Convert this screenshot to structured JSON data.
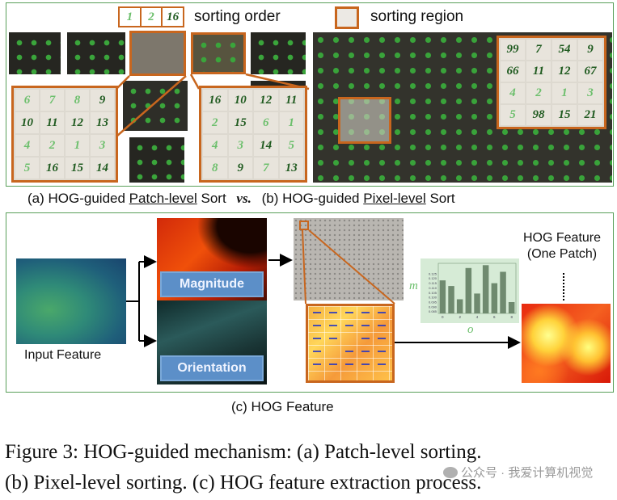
{
  "legend": {
    "order_numbers": [
      "1",
      "2",
      "16"
    ],
    "order_label": "sorting order",
    "region_label": "sorting region"
  },
  "patch_grid_left": [
    [
      "6",
      "7",
      "8",
      "9"
    ],
    [
      "10",
      "11",
      "12",
      "13"
    ],
    [
      "4",
      "2",
      "1",
      "3"
    ],
    [
      "5",
      "16",
      "15",
      "14"
    ]
  ],
  "patch_grid_right": [
    [
      "16",
      "10",
      "12",
      "11"
    ],
    [
      "2",
      "15",
      "6",
      "1"
    ],
    [
      "4",
      "3",
      "14",
      "5"
    ],
    [
      "8",
      "9",
      "7",
      "13"
    ]
  ],
  "pixel_grid": [
    [
      "99",
      "7",
      "54",
      "9"
    ],
    [
      "66",
      "11",
      "12",
      "67"
    ],
    [
      "4",
      "2",
      "1",
      "3"
    ],
    [
      "5",
      "98",
      "15",
      "21"
    ]
  ],
  "caption_a_prefix": "(a) HOG-guided ",
  "caption_a_underlined": "Patch-level",
  "caption_a_suffix": " Sort",
  "vs": "vs.",
  "caption_b_prefix": "(b) HOG-guided ",
  "caption_b_underlined": "Pixel-level",
  "caption_b_suffix": " Sort",
  "panel_c": {
    "input_label": "Input Feature",
    "magnitude_label": "Magnitude",
    "orientation_label": "Orientation",
    "hog_title_line1": "HOG Feature",
    "hog_title_line2": "(One Patch)",
    "axis_m": "m",
    "axis_o": "o",
    "caption": "(c) HOG Feature"
  },
  "figure_caption_line1": "Figure 3: HOG-guided mechanism: (a) Patch-level sorting.",
  "figure_caption_line2": "(b) Pixel-level sorting. (c) HOG feature extraction process.",
  "watermark": "公众号 · 我爱计算机视觉",
  "colors": {
    "green_border": "#5aa05a",
    "orange": "#c8661e",
    "light_green_num": "#6cbf6c",
    "dark_green_num": "#1f5a1f"
  },
  "chart_data": {
    "type": "bar",
    "categories": [
      "0",
      "1",
      "2",
      "3",
      "4",
      "5",
      "6",
      "7",
      "8"
    ],
    "values": [
      0.118,
      0.112,
      0.098,
      0.131,
      0.104,
      0.134,
      0.115,
      0.127,
      0.095
    ],
    "ylabel": "m",
    "xlabel": "o",
    "ytick_labels": [
      "0.125",
      "0.120",
      "0.115",
      "0.110",
      "0.105",
      "0.100",
      "0.095",
      "0.090",
      "0.085"
    ],
    "xtick_labels": [
      "0",
      "2",
      "4",
      "6",
      "8"
    ],
    "ylim": [
      0.083,
      0.136
    ]
  }
}
